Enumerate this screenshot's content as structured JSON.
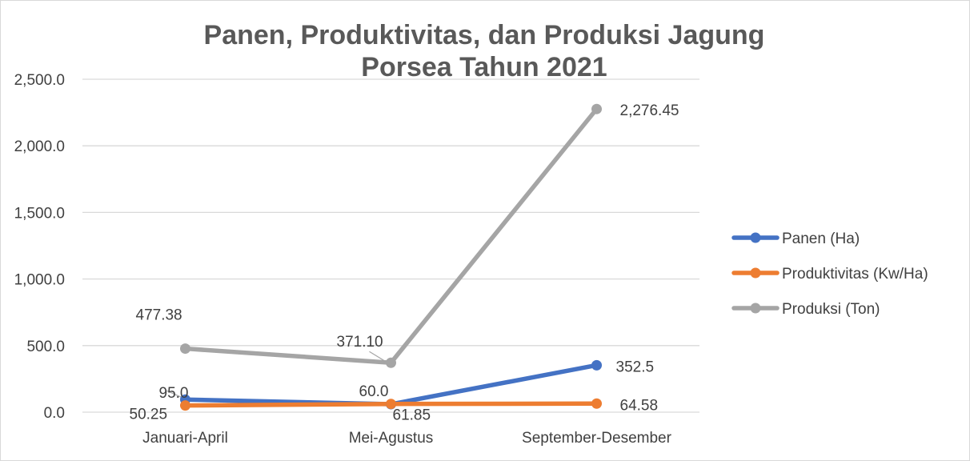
{
  "chart_data": {
    "type": "line",
    "title_lines": [
      "Panen, Produktivitas, dan Produksi Jagung",
      "Porsea Tahun 2021"
    ],
    "categories": [
      "Januari-April",
      "Mei-Agustus",
      "September-Desember"
    ],
    "ylim": [
      0,
      2500
    ],
    "yticks": [
      0,
      500,
      1000,
      1500,
      2000,
      2500
    ],
    "ytick_labels": [
      "0.0",
      "500.0",
      "1,000.0",
      "1,500.0",
      "2,000.0",
      "2,500.0"
    ],
    "grid": true,
    "legend_position": "right",
    "series": [
      {
        "name": "Panen (Ha)",
        "color": "#4472c4",
        "values": [
          95.0,
          60.0,
          352.5
        ],
        "labels": [
          "95.0",
          "60.0",
          "352.5"
        ]
      },
      {
        "name": "Produktivitas (Kw/Ha)",
        "color": "#ed7d31",
        "values": [
          50.25,
          61.85,
          64.58
        ],
        "labels": [
          "50.25",
          "61.85",
          "64.58"
        ]
      },
      {
        "name": "Produksi (Ton)",
        "color": "#a5a5a5",
        "values": [
          477.38,
          371.1,
          2276.45
        ],
        "labels": [
          "477.38",
          "371.10",
          "2,276.45"
        ]
      }
    ]
  }
}
